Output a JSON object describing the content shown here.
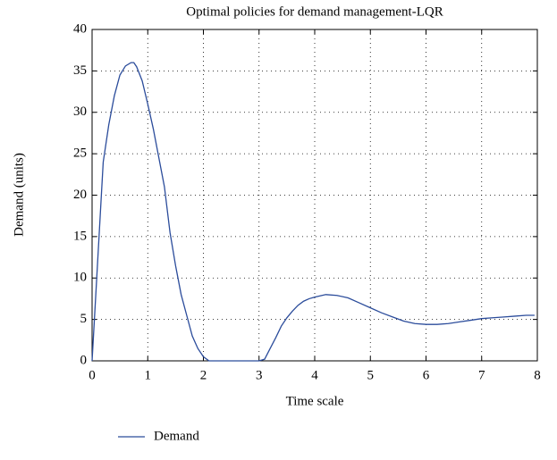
{
  "chart_data": {
    "type": "line",
    "title": "Optimal policies for demand management-LQR",
    "xlabel": "Time scale",
    "ylabel": "Demand (units)",
    "x": [
      0,
      0.1,
      0.2,
      0.3,
      0.4,
      0.5,
      0.6,
      0.7,
      0.75,
      0.8,
      0.9,
      1.0,
      1.1,
      1.2,
      1.3,
      1.4,
      1.5,
      1.6,
      1.7,
      1.8,
      1.9,
      2.0,
      2.1,
      2.5,
      3.0,
      3.1,
      3.2,
      3.3,
      3.4,
      3.5,
      3.6,
      3.7,
      3.8,
      3.9,
      4.0,
      4.2,
      4.4,
      4.6,
      4.8,
      5.0,
      5.2,
      5.4,
      5.6,
      5.8,
      6.0,
      6.2,
      6.4,
      6.6,
      6.8,
      7.0,
      7.2,
      7.4,
      7.6,
      7.8,
      7.95
    ],
    "series": [
      {
        "name": "Demand",
        "color": "#2b4c9b",
        "values": [
          0,
          12,
          24,
          28.5,
          32,
          34.5,
          35.6,
          36,
          36,
          35.5,
          33.8,
          31,
          28,
          24.5,
          21,
          15.5,
          11.5,
          8,
          5.5,
          3,
          1.5,
          0.5,
          0,
          0,
          0,
          0.2,
          1.5,
          2.8,
          4.2,
          5.2,
          6,
          6.7,
          7.2,
          7.5,
          7.7,
          8,
          7.9,
          7.6,
          7,
          6.4,
          5.8,
          5.3,
          4.8,
          4.5,
          4.4,
          4.4,
          4.5,
          4.7,
          4.9,
          5.1,
          5.2,
          5.3,
          5.4,
          5.5,
          5.5
        ]
      }
    ],
    "xlim": [
      0,
      8
    ],
    "xticks": [
      0,
      1,
      2,
      3,
      4,
      5,
      6,
      7,
      8
    ],
    "ylim": [
      0,
      40
    ],
    "yticks": [
      0,
      5,
      10,
      15,
      20,
      25,
      30,
      35,
      40
    ],
    "grid": true,
    "legend": "bottom-left"
  }
}
